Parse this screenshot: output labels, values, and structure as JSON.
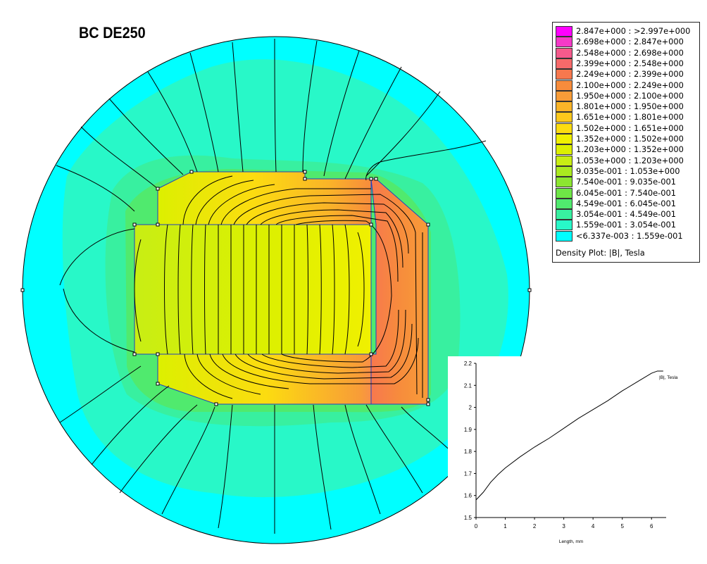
{
  "title": "BC DE250",
  "legend": {
    "caption": "Density Plot: |B|, Tesla",
    "entries": [
      {
        "label": "2.847e+000 : >2.997e+000",
        "color": "#ff00ff"
      },
      {
        "label": "2.698e+000 : 2.847e+000",
        "color": "#f53ac8"
      },
      {
        "label": "2.548e+000 : 2.698e+000",
        "color": "#f55a8c"
      },
      {
        "label": "2.399e+000 : 2.548e+000",
        "color": "#f76a6a"
      },
      {
        "label": "2.249e+000 : 2.399e+000",
        "color": "#f7784e"
      },
      {
        "label": "2.100e+000 : 2.249e+000",
        "color": "#f78c3c"
      },
      {
        "label": "1.950e+000 : 2.100e+000",
        "color": "#f89c38"
      },
      {
        "label": "1.801e+000 : 1.950e+000",
        "color": "#fab428"
      },
      {
        "label": "1.651e+000 : 1.801e+000",
        "color": "#fcc81c"
      },
      {
        "label": "1.502e+000 : 1.651e+000",
        "color": "#fcdc10"
      },
      {
        "label": "1.352e+000 : 1.502e+000",
        "color": "#f0f000"
      },
      {
        "label": "1.203e+000 : 1.352e+000",
        "color": "#dcf000"
      },
      {
        "label": "1.053e+000 : 1.203e+000",
        "color": "#c8ee14"
      },
      {
        "label": "9.035e-001 : 1.053e+000",
        "color": "#aaea20"
      },
      {
        "label": "7.540e-001 : 9.035e-001",
        "color": "#8ce630"
      },
      {
        "label": "6.045e-001 : 7.540e-001",
        "color": "#6ee646"
      },
      {
        "label": "4.549e-001 : 6.045e-001",
        "color": "#50ea6e"
      },
      {
        "label": "3.054e-001 : 4.549e-001",
        "color": "#38f0a0"
      },
      {
        "label": "1.559e-001 : 3.054e-001",
        "color": "#28f8c8"
      },
      {
        "label": "<6.337e-003 : 1.559e-001",
        "color": "#00ffff"
      }
    ]
  },
  "chart_data": {
    "type": "line",
    "series": [
      {
        "name": "|B|, Tesla",
        "x": [
          0,
          0.25,
          0.5,
          0.75,
          1.0,
          1.5,
          2.0,
          2.5,
          3.0,
          3.5,
          4.0,
          4.5,
          5.0,
          5.5,
          6.0,
          6.2,
          6.4
        ],
        "y": [
          1.58,
          1.615,
          1.66,
          1.695,
          1.725,
          1.775,
          1.82,
          1.86,
          1.905,
          1.95,
          1.99,
          2.03,
          2.075,
          2.115,
          2.155,
          2.165,
          2.165
        ]
      }
    ],
    "xlabel": "Length, mm",
    "ylabel": "",
    "xlim": [
      0,
      6.5
    ],
    "ylim": [
      1.5,
      2.2
    ],
    "xticks": [
      "0",
      "1",
      "2",
      "3",
      "4",
      "5",
      "6"
    ],
    "yticks": [
      "1.5",
      "1.6",
      "1.7",
      "1.8",
      "1.9",
      "2",
      "2.1",
      "2.2"
    ],
    "grid": false,
    "legend_position": "top-right"
  }
}
